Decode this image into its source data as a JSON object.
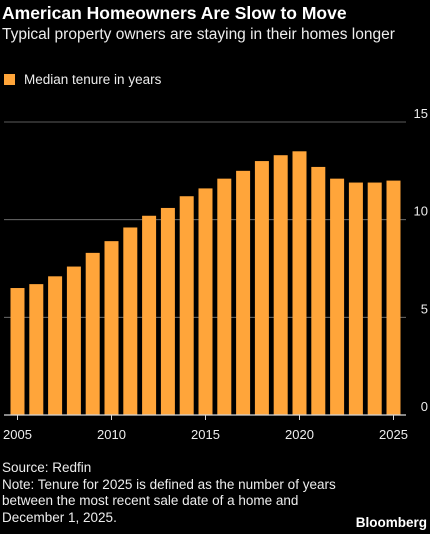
{
  "header": {
    "title": "American Homeowners Are Slow to Move",
    "subtitle": "Typical property owners are staying in their homes longer"
  },
  "legend": {
    "label": "Median tenure in years"
  },
  "colors": {
    "bar": "#FFA53A",
    "background": "#000000",
    "gridline": "#7a7a7a",
    "text": "#ffffff"
  },
  "chart_data": {
    "type": "bar",
    "title": "American Homeowners Are Slow to Move",
    "subtitle": "Typical property owners are staying in their homes longer",
    "xlabel": "",
    "ylabel": "",
    "categories": [
      2005,
      2006,
      2007,
      2008,
      2009,
      2010,
      2011,
      2012,
      2013,
      2014,
      2015,
      2016,
      2017,
      2018,
      2019,
      2020,
      2021,
      2022,
      2023,
      2024,
      2025
    ],
    "x_tick_labels": [
      "2005",
      "2010",
      "2015",
      "2020",
      "2025"
    ],
    "series": [
      {
        "name": "Median tenure in years",
        "values": [
          6.5,
          6.7,
          7.1,
          7.6,
          8.3,
          8.9,
          9.6,
          10.2,
          10.6,
          11.2,
          11.6,
          12.1,
          12.5,
          13.0,
          13.3,
          13.5,
          12.7,
          12.1,
          11.9,
          11.9,
          12.0
        ]
      }
    ],
    "ylim": [
      0,
      15
    ],
    "y_ticks": [
      0,
      5,
      10,
      15
    ],
    "y_axis_side": "right",
    "grid": true,
    "legend_position": "top-left"
  },
  "footer": {
    "source": "Source: Redfin",
    "note": "Note: Tenure for 2025 is defined as the number of years between the most recent sale date of a home and December 1, 2025.",
    "brand": "Bloomberg"
  }
}
